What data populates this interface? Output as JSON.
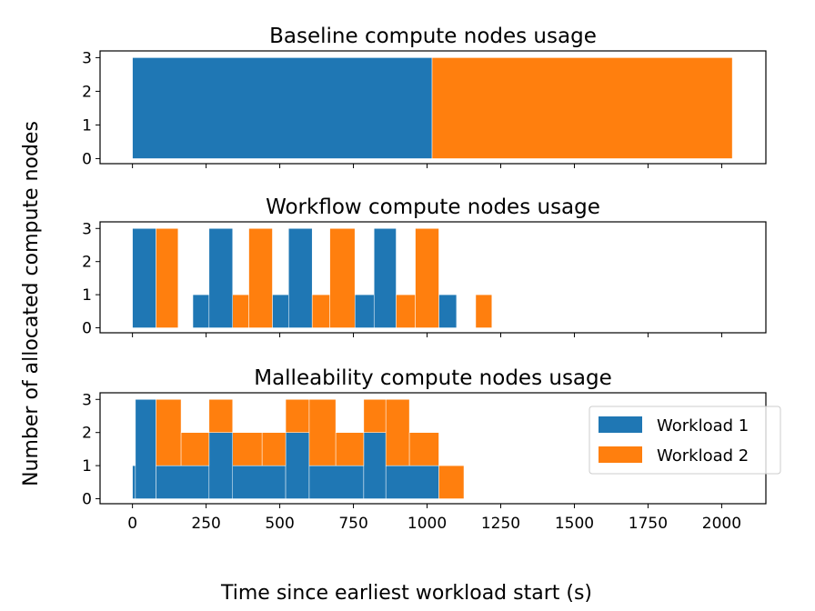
{
  "figure": {
    "xlabel": "Time since earliest workload start (s)",
    "ylabel": "Number of allocated compute nodes"
  },
  "colors": {
    "Workload 1": "#1f77b4",
    "Workload 2": "#ff7f0e"
  },
  "legend": {
    "placement": "right",
    "entries": [
      "Workload 1",
      "Workload 2"
    ]
  },
  "chart_data": [
    {
      "type": "area",
      "title": "Baseline compute nodes usage",
      "xlim": [
        -110,
        2150
      ],
      "ylim": [
        -0.15,
        3.2
      ],
      "yticks": [
        0,
        1,
        2,
        3
      ],
      "xticks": [
        0,
        250,
        500,
        750,
        1000,
        1250,
        1500,
        1750,
        2000
      ],
      "xtick_labels_shown": false,
      "series": [
        {
          "name": "Workload 1",
          "base": "zero",
          "steps": [
            [
              0,
              3
            ],
            [
              1017,
              0
            ]
          ]
        },
        {
          "name": "Workload 2",
          "base": "zero",
          "steps": [
            [
              1017,
              3
            ],
            [
              2036,
              0
            ]
          ]
        }
      ]
    },
    {
      "type": "area",
      "title": "Workflow compute nodes usage",
      "xlim": [
        -110,
        2150
      ],
      "ylim": [
        -0.15,
        3.2
      ],
      "yticks": [
        0,
        1,
        2,
        3
      ],
      "xticks": [
        0,
        250,
        500,
        750,
        1000,
        1250,
        1500,
        1750,
        2000
      ],
      "xtick_labels_shown": false,
      "series": [
        {
          "name": "Workload 1",
          "base": "zero",
          "steps": [
            [
              0,
              3
            ],
            [
              80,
              0
            ],
            [
              205,
              1
            ],
            [
              260,
              3
            ],
            [
              340,
              0
            ],
            [
              475,
              1
            ],
            [
              530,
              3
            ],
            [
              610,
              1
            ],
            [
              670,
              0
            ],
            [
              755,
              1
            ],
            [
              820,
              3
            ],
            [
              895,
              0
            ],
            [
              1040,
              1
            ],
            [
              1100,
              0
            ]
          ]
        },
        {
          "name": "Workload 2",
          "base": "zero",
          "steps": [
            [
              80,
              3
            ],
            [
              155,
              0
            ],
            [
              340,
              1
            ],
            [
              395,
              3
            ],
            [
              475,
              0
            ],
            [
              610,
              1
            ],
            [
              670,
              3
            ],
            [
              755,
              0
            ],
            [
              895,
              1
            ],
            [
              960,
              3
            ],
            [
              1040,
              0
            ],
            [
              1165,
              1
            ],
            [
              1220,
              0
            ]
          ]
        }
      ]
    },
    {
      "type": "area",
      "title": "Malleability compute nodes usage",
      "xlim": [
        -110,
        2150
      ],
      "ylim": [
        -0.15,
        3.2
      ],
      "yticks": [
        0,
        1,
        2,
        3
      ],
      "xticks": [
        0,
        250,
        500,
        750,
        1000,
        1250,
        1500,
        1750,
        2000
      ],
      "xtick_labels_shown": true,
      "show_legend": true,
      "series": [
        {
          "name": "Workload 1",
          "base": "zero",
          "steps": [
            [
              0,
              1
            ],
            [
              10,
              3
            ],
            [
              80,
              1
            ],
            [
              260,
              2
            ],
            [
              340,
              1
            ],
            [
              520,
              2
            ],
            [
              600,
              1
            ],
            [
              785,
              2
            ],
            [
              860,
              1
            ],
            [
              1040,
              0
            ]
          ]
        },
        {
          "name": "Workload 2",
          "base": "Workload 1",
          "steps": [
            [
              0,
              0
            ],
            [
              80,
              2
            ],
            [
              165,
              1
            ],
            [
              260,
              1
            ],
            [
              340,
              1
            ],
            [
              440,
              1
            ],
            [
              520,
              1
            ],
            [
              600,
              2
            ],
            [
              690,
              1
            ],
            [
              785,
              1
            ],
            [
              860,
              2
            ],
            [
              940,
              1
            ],
            [
              1040,
              1
            ],
            [
              1125,
              0
            ]
          ]
        }
      ]
    }
  ]
}
